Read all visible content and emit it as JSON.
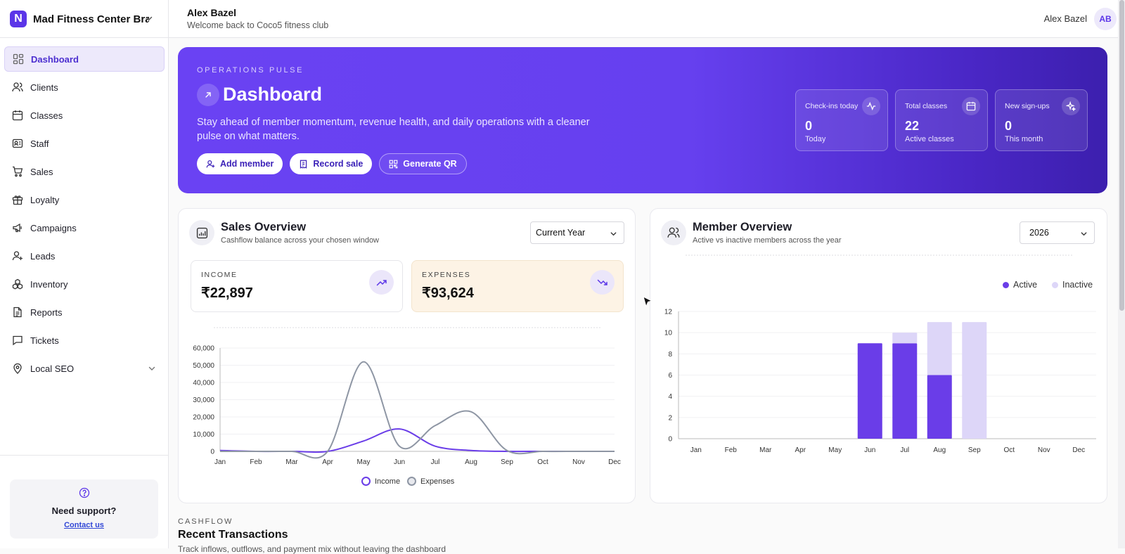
{
  "brand": {
    "initial": "N",
    "name": "Mad Fitness Center Bra..."
  },
  "sidebar": {
    "items": [
      {
        "label": "Dashboard",
        "icon": "dashboard-icon",
        "active": true
      },
      {
        "label": "Clients",
        "icon": "users-icon"
      },
      {
        "label": "Classes",
        "icon": "calendar-icon"
      },
      {
        "label": "Staff",
        "icon": "id-card-icon"
      },
      {
        "label": "Sales",
        "icon": "cart-icon"
      },
      {
        "label": "Loyalty",
        "icon": "gift-icon"
      },
      {
        "label": "Campaigns",
        "icon": "megaphone-icon"
      },
      {
        "label": "Leads",
        "icon": "user-plus-icon"
      },
      {
        "label": "Inventory",
        "icon": "boxes-icon"
      },
      {
        "label": "Reports",
        "icon": "report-icon"
      },
      {
        "label": "Tickets",
        "icon": "chat-icon"
      },
      {
        "label": "Local SEO",
        "icon": "map-pin-icon",
        "expandable": true
      }
    ],
    "support": {
      "title": "Need support?",
      "link": "Contact us"
    }
  },
  "header": {
    "user_name": "Alex Bazel",
    "welcome": "Welcome back to Coco5 fitness club",
    "right_name": "Alex Bazel",
    "avatar_initials": "AB"
  },
  "hero": {
    "eyebrow": "OPERATIONS PULSE",
    "title": "Dashboard",
    "description": "Stay ahead of member momentum, revenue health, and daily operations with a cleaner pulse on what matters.",
    "buttons": [
      {
        "label": "Add member",
        "icon": "user-plus-icon"
      },
      {
        "label": "Record sale",
        "icon": "receipt-icon"
      },
      {
        "label": "Generate QR",
        "icon": "qr-code-icon"
      }
    ],
    "stats": [
      {
        "label": "Check-ins today",
        "value": "0",
        "sub": "Today",
        "icon": "activity-icon"
      },
      {
        "label": "Total classes",
        "value": "22",
        "sub": "Active classes",
        "icon": "calendar-icon"
      },
      {
        "label": "New sign-ups",
        "value": "0",
        "sub": "This month",
        "icon": "sparkle-icon"
      }
    ]
  },
  "sales": {
    "title": "Sales Overview",
    "subtitle": "Cashflow balance across your chosen window",
    "period": "Current Year",
    "income": {
      "label": "INCOME",
      "value": "₹22,897"
    },
    "expenses": {
      "label": "EXPENSES",
      "value": "₹93,624"
    }
  },
  "members": {
    "title": "Member Overview",
    "subtitle": "Active vs inactive members across the year",
    "year": "2026"
  },
  "cashflow": {
    "eyebrow": "CASHFLOW",
    "title": "Recent Transactions",
    "subtitle": "Track inflows, outflows, and payment mix without leaving the dashboard"
  },
  "colors": {
    "accent": "#5b35e8",
    "income_line": "#6a3de8",
    "expenses_line": "#8e96a4",
    "active_bar": "#6a3de8",
    "inactive_bar": "#ddd6f8"
  },
  "chart_data": [
    {
      "type": "line",
      "x": [
        "Jan",
        "Feb",
        "Mar",
        "Apr",
        "May",
        "Jun",
        "Jul",
        "Aug",
        "Sep",
        "Oct",
        "Nov",
        "Dec"
      ],
      "ylim": [
        0,
        60000
      ],
      "yticks": [
        "0",
        "10,000",
        "20,000",
        "30,000",
        "40,000",
        "50,000",
        "60,000"
      ],
      "grid": true,
      "legend": "bottom",
      "series": [
        {
          "name": "Income",
          "values": [
            500,
            0,
            0,
            0,
            6000,
            13000,
            3000,
            500,
            0,
            0,
            0,
            0
          ]
        },
        {
          "name": "Expenses",
          "values": [
            0,
            0,
            0,
            0,
            52000,
            3000,
            15000,
            23000,
            500,
            0,
            0,
            0
          ]
        }
      ]
    },
    {
      "type": "bar",
      "stacked": true,
      "categories": [
        "Jan",
        "Feb",
        "Mar",
        "Apr",
        "May",
        "Jun",
        "Jul",
        "Aug",
        "Sep",
        "Oct",
        "Nov",
        "Dec"
      ],
      "ylim": [
        0,
        12
      ],
      "yticks": [
        "0",
        "2",
        "4",
        "6",
        "8",
        "10",
        "12"
      ],
      "grid": true,
      "legend": "top-right",
      "series": [
        {
          "name": "Active",
          "values": [
            0,
            0,
            0,
            0,
            0,
            9,
            9,
            6,
            0,
            0,
            0,
            0
          ]
        },
        {
          "name": "Inactive",
          "values": [
            0,
            0,
            0,
            0,
            0,
            0,
            1,
            5,
            11,
            0,
            0,
            0
          ]
        }
      ]
    }
  ]
}
